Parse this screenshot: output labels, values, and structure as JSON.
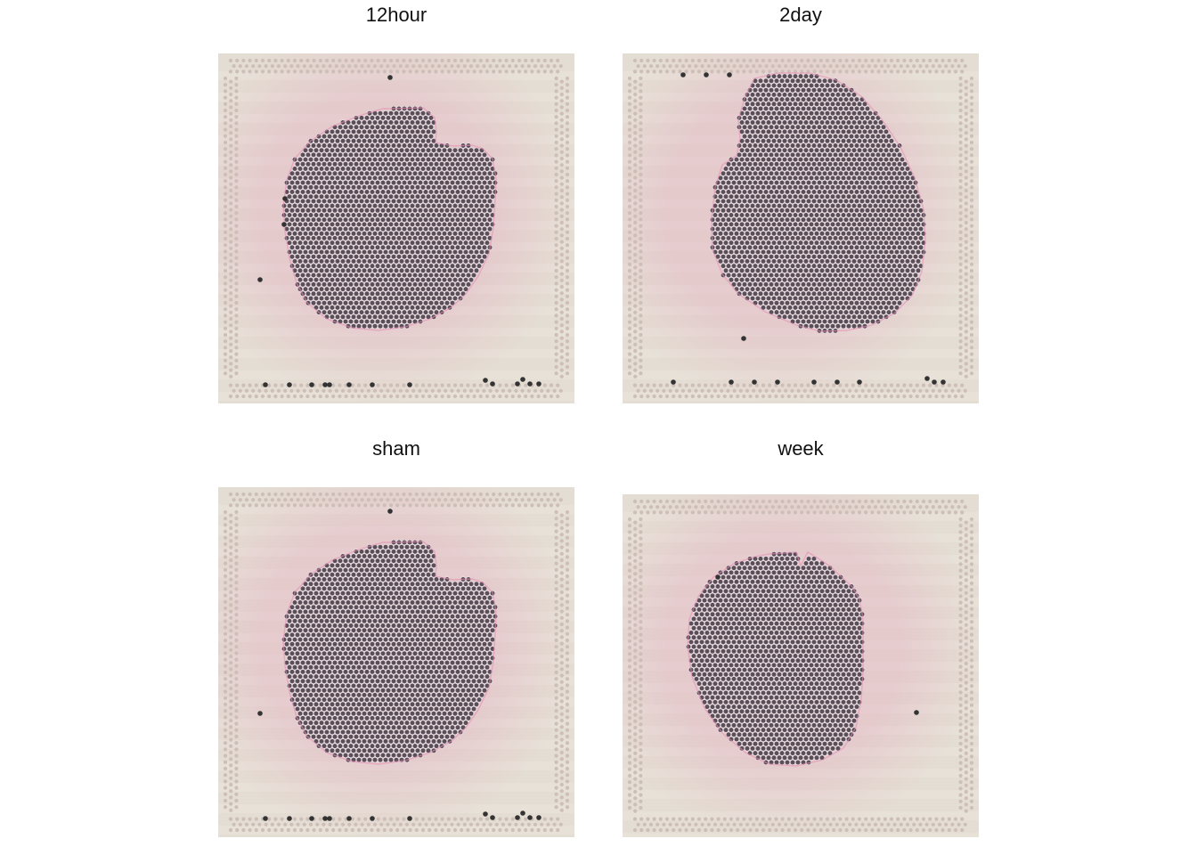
{
  "colors": {
    "slide_background": "#e4ddd3",
    "border_dots": "#cdbfb8",
    "tissue_spot": "#5a4f58",
    "spot_outline": "#efe6ea",
    "fiducial_dark": "#333333",
    "eosin_pink": "#e58fb4"
  },
  "panels": [
    {
      "id": "p1",
      "title": "12hour"
    },
    {
      "id": "p2",
      "title": "2day"
    },
    {
      "id": "p3",
      "title": "sham"
    },
    {
      "id": "p4",
      "title": "week"
    }
  ]
}
